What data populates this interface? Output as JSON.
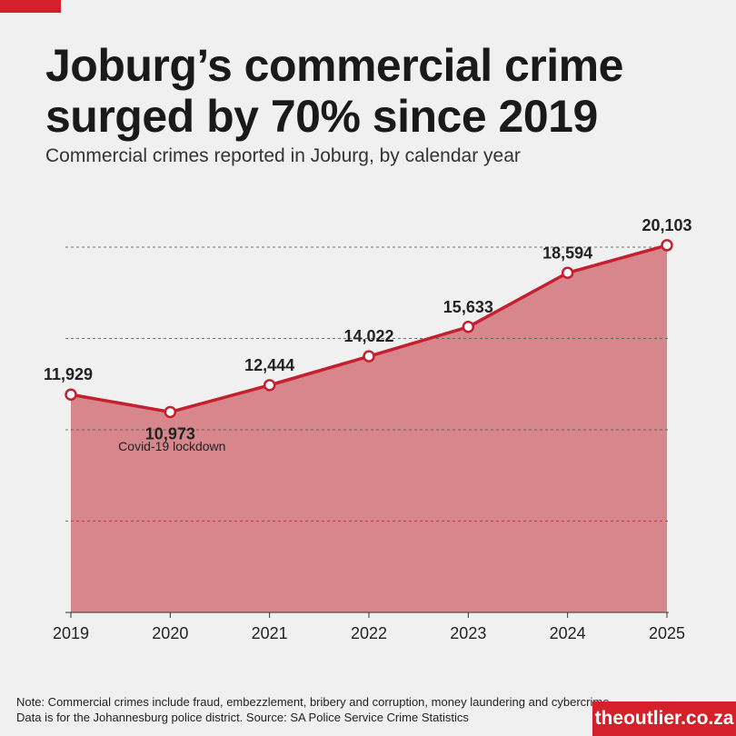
{
  "title": "Joburg’s commercial crime surged by 70% since 2019",
  "subtitle": "Commercial crimes reported in Joburg, by calendar year",
  "note": "Note: Commercial crimes include fraud, embezzlement, bribery and corruption, money laundering and cybercrime. Data is for the Johannesburg police district. Source: SA Police Service Crime Statistics",
  "brand": "theoutlier.co.za",
  "colors": {
    "accent": "#d3202a",
    "line": "#c4202f",
    "area": "#d7878c",
    "background": "#f0f0f0"
  },
  "chart_data": {
    "type": "area",
    "x": [
      "2019",
      "2020",
      "2021",
      "2022",
      "2023",
      "2024",
      "2025"
    ],
    "series": [
      {
        "values": [
          11929,
          10973,
          12444,
          14022,
          15633,
          18594,
          20103
        ]
      }
    ],
    "value_labels": [
      "11,929",
      "10,973",
      "12,444",
      "14,022",
      "15,633",
      "18,594",
      "20,103"
    ],
    "ylim": [
      0,
      20000
    ],
    "gridlines": [
      5000,
      10000,
      15000,
      20000
    ],
    "grid": true,
    "annotations": [
      {
        "x": "2020",
        "text": "Covid-19 lockdown"
      }
    ]
  }
}
